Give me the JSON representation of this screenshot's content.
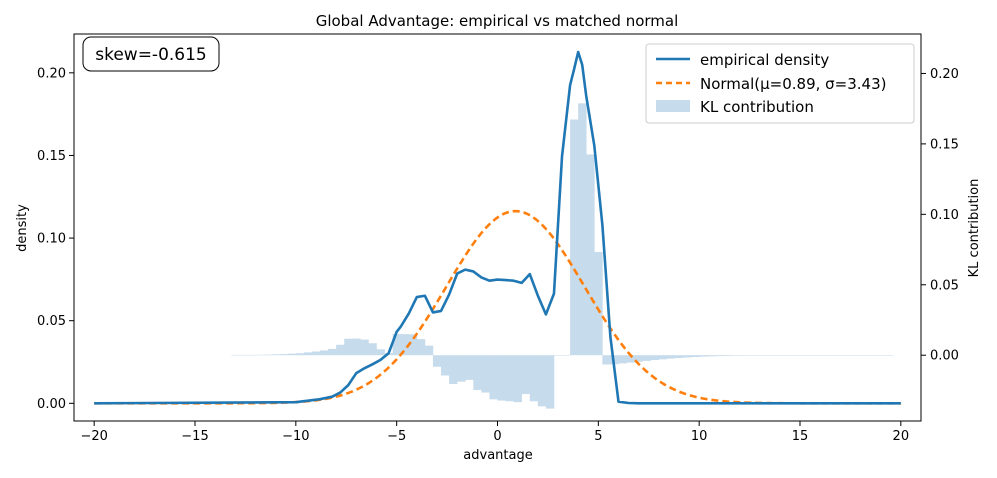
{
  "chart_data": {
    "type": "line",
    "title": "Global Advantage: empirical vs matched normal",
    "xlabel": "advantage",
    "ylabel": "density",
    "y2label": "KL contribution",
    "xlim": [
      -21.0,
      21.0
    ],
    "ylim": [
      -0.0107,
      0.2235
    ],
    "y2lim": [
      -0.0467,
      0.228
    ],
    "xticks": [
      -20,
      -15,
      -10,
      -5,
      0,
      5,
      10,
      15,
      20
    ],
    "xtick_labels": [
      "−20",
      "−15",
      "−10",
      "−5",
      "0",
      "5",
      "10",
      "15",
      "20"
    ],
    "yticks": [
      0.0,
      0.05,
      0.1,
      0.15,
      0.2
    ],
    "ytick_labels": [
      "0.00",
      "0.05",
      "0.10",
      "0.15",
      "0.20"
    ],
    "y2ticks": [
      0.0,
      0.05,
      0.1,
      0.15,
      0.2
    ],
    "y2tick_labels": [
      "0.00",
      "0.05",
      "0.10",
      "0.15",
      "0.20"
    ],
    "annotation": "skew=-0.615",
    "legend": {
      "position": "top-right",
      "entries": [
        "empirical density",
        "Normal(μ=0.89, σ=3.43)",
        "KL contribution"
      ]
    },
    "colors": {
      "empirical": "#1f77b4",
      "normal": "#ff7f0e",
      "kl": "#c6dbeb"
    },
    "normal": {
      "mu": 0.89,
      "sigma": 3.43
    },
    "empirical": {
      "x": [
        -20,
        -10,
        -9.4,
        -8.8,
        -8.2,
        -7.8,
        -7.4,
        -7.0,
        -6.6,
        -6.2,
        -5.8,
        -5.4,
        -5.0,
        -4.8,
        -4.4,
        -4.0,
        -3.6,
        -3.2,
        -2.8,
        -2.4,
        -2.0,
        -1.6,
        -1.2,
        -0.8,
        -0.4,
        0.0,
        0.4,
        0.8,
        1.2,
        1.6,
        2.0,
        2.4,
        2.8,
        3.2,
        3.6,
        3.8,
        4.0,
        4.2,
        4.4,
        4.8,
        5.2,
        5.6,
        6.0,
        6.5,
        7.0,
        20
      ],
      "y": [
        0.0,
        0.0007,
        0.0016,
        0.0025,
        0.004,
        0.0065,
        0.011,
        0.0183,
        0.0212,
        0.0236,
        0.0263,
        0.0303,
        0.0433,
        0.0464,
        0.0543,
        0.0643,
        0.0651,
        0.055,
        0.0559,
        0.0658,
        0.0785,
        0.0809,
        0.0798,
        0.0762,
        0.0742,
        0.0749,
        0.0746,
        0.0742,
        0.0729,
        0.0782,
        0.0652,
        0.0538,
        0.0664,
        0.1495,
        0.1926,
        0.2023,
        0.2126,
        0.2049,
        0.186,
        0.156,
        0.108,
        0.04,
        0.001,
        0.0002,
        0.0,
        0.0
      ]
    },
    "kl_bins": {
      "width": 0.4,
      "centers": [
        -13.0,
        -12.6,
        -12.2,
        -11.8,
        -11.4,
        -11.0,
        -10.6,
        -10.2,
        -9.8,
        -9.4,
        -9.0,
        -8.6,
        -8.2,
        -7.8,
        -7.4,
        -7.0,
        -6.6,
        -6.2,
        -5.8,
        -5.4,
        -5.0,
        -4.6,
        -4.2,
        -3.8,
        -3.4,
        -3.0,
        -2.6,
        -2.2,
        -1.8,
        -1.4,
        -1.0,
        -0.6,
        -0.2,
        0.2,
        0.6,
        1.0,
        1.4,
        1.8,
        2.2,
        2.6,
        3.0,
        3.4,
        3.8,
        4.2,
        4.6,
        5.0,
        5.4,
        5.8,
        6.2,
        6.6,
        7.0,
        7.4,
        7.8,
        8.2,
        8.6,
        9.0,
        9.4,
        9.8,
        10.2,
        10.6,
        11.0,
        11.4,
        11.8,
        12.2,
        12.6,
        13.0,
        13.4,
        13.8,
        14.2,
        14.6,
        15.0,
        15.4,
        15.8,
        16.2,
        16.6,
        17.0,
        17.4,
        17.8,
        18.2,
        18.6,
        19.0,
        19.4
      ],
      "values": [
        0.0002,
        0.0002,
        0.0002,
        0.0003,
        0.0004,
        0.0006,
        0.0008,
        0.0011,
        0.0014,
        0.002,
        0.0026,
        0.0034,
        0.0045,
        0.0074,
        0.0117,
        0.0118,
        0.0111,
        0.0085,
        0.0042,
        0.0015,
        0.015,
        0.015,
        0.0148,
        0.0114,
        0.0068,
        -0.0082,
        -0.0144,
        -0.0204,
        -0.0188,
        -0.0175,
        -0.0247,
        -0.0265,
        -0.0313,
        -0.0322,
        -0.0327,
        -0.0333,
        -0.0276,
        -0.0327,
        -0.0363,
        -0.0379,
        0.0,
        0.0,
        0.1673,
        0.1788,
        0.1425,
        0.0733,
        -0.0066,
        -0.0064,
        -0.0058,
        -0.0052,
        -0.0046,
        -0.004,
        -0.0034,
        -0.0029,
        -0.0024,
        -0.002,
        -0.0016,
        -0.0013,
        -0.001,
        -0.0008,
        -0.0006,
        -0.0005,
        -0.0004,
        -0.0003,
        -0.0002,
        -0.0002,
        -0.0001,
        -0.0001,
        -0.0001,
        -0.0001,
        0.0,
        0.0,
        0.0,
        0.0,
        0.0,
        0.0,
        0.0,
        0.0,
        0.0,
        0.0,
        0.0,
        0.0
      ]
    }
  }
}
